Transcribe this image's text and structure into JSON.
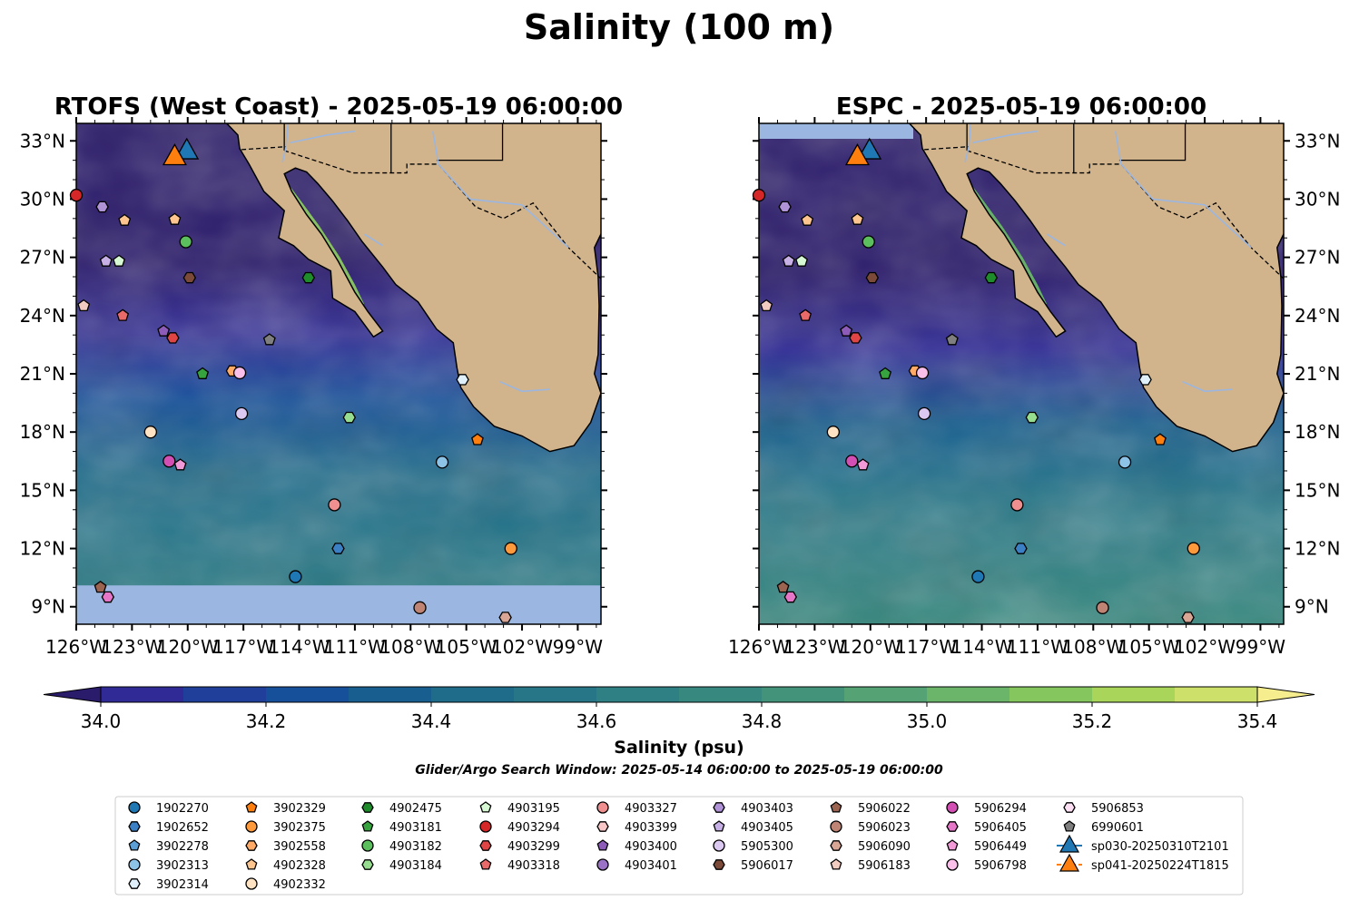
{
  "figure": {
    "title": "Salinity (100 m)",
    "panels": [
      {
        "id": "rtofs",
        "title": "RTOFS (West Coast) - 2025-05-19 06:00:00",
        "lat_labels_side": "left"
      },
      {
        "id": "espc",
        "title": "ESPC - 2025-05-19 06:00:00",
        "lat_labels_side": "right"
      }
    ],
    "lon_ticks": [
      "126°W",
      "123°W",
      "120°W",
      "117°W",
      "114°W",
      "111°W",
      "108°W",
      "105°W",
      "102°W",
      "99°W"
    ],
    "lat_ticks": [
      "33°N",
      "30°N",
      "27°N",
      "24°N",
      "21°N",
      "18°N",
      "15°N",
      "12°N",
      "9°N"
    ],
    "colorbar": {
      "label": "Salinity (psu)",
      "tick_labels": [
        "34.0",
        "34.2",
        "34.4",
        "34.6",
        "34.8",
        "35.0",
        "35.2",
        "35.4"
      ],
      "min": 34.0,
      "max": 35.4,
      "step": 0.1,
      "extend": "both",
      "colors": [
        "#2b1b6b",
        "#2f2a96",
        "#1f3f9a",
        "#17509a",
        "#185f8f",
        "#1e6b8a",
        "#267688",
        "#2e8084",
        "#37897f",
        "#43937a",
        "#55a274",
        "#6ab56a",
        "#86c65e",
        "#a8d55a",
        "#cde06a",
        "#f6ee8e"
      ]
    },
    "search_window": "Glider/Argo Search Window: 2025-05-14 06:00:00 to 2025-05-19 06:00:00",
    "land_color": "#d2b48c",
    "no_data_color": "#9bb6e0",
    "legend": {
      "columns": [
        [
          {
            "label": "1902270",
            "marker": "circle",
            "color": "#1f77b4"
          },
          {
            "label": "1902652",
            "marker": "hexagon",
            "color": "#3b80c4"
          },
          {
            "label": "3902278",
            "marker": "pentagon",
            "color": "#5b9fd6"
          },
          {
            "label": "3902313",
            "marker": "circle",
            "color": "#8ec3e8"
          },
          {
            "label": "3902314",
            "marker": "hexagon",
            "color": "#dff0fb"
          }
        ],
        [
          {
            "label": "3902329",
            "marker": "pentagon",
            "color": "#ff7f0e"
          },
          {
            "label": "3902375",
            "marker": "circle",
            "color": "#ff9a3c"
          },
          {
            "label": "3902558",
            "marker": "hexagon",
            "color": "#ffaa66"
          },
          {
            "label": "4902328",
            "marker": "pentagon",
            "color": "#ffc58f"
          },
          {
            "label": "4902332",
            "marker": "circle",
            "color": "#ffe3c2"
          }
        ],
        [
          {
            "label": "4902475",
            "marker": "hexagon",
            "color": "#1e8c2a"
          },
          {
            "label": "4903181",
            "marker": "pentagon",
            "color": "#36a33f"
          },
          {
            "label": "4903182",
            "marker": "circle",
            "color": "#5cbf5e"
          },
          {
            "label": "4903184",
            "marker": "hexagon",
            "color": "#97dd8f"
          }
        ],
        [
          {
            "label": "4903195",
            "marker": "pentagon",
            "color": "#d6f8d2"
          },
          {
            "label": "4903294",
            "marker": "circle",
            "color": "#d62728"
          },
          {
            "label": "4903299",
            "marker": "hexagon",
            "color": "#e04545"
          },
          {
            "label": "4903318",
            "marker": "pentagon",
            "color": "#ea6a6a"
          }
        ],
        [
          {
            "label": "4903327",
            "marker": "circle",
            "color": "#f08f8f"
          },
          {
            "label": "4903399",
            "marker": "hexagon",
            "color": "#f8c6c6"
          },
          {
            "label": "4903400",
            "marker": "pentagon",
            "color": "#8c5cb8"
          },
          {
            "label": "4903401",
            "marker": "circle",
            "color": "#9a72c6"
          }
        ],
        [
          {
            "label": "4903403",
            "marker": "hexagon",
            "color": "#b092d6"
          },
          {
            "label": "4903405",
            "marker": "pentagon",
            "color": "#c7b0e6"
          },
          {
            "label": "5905300",
            "marker": "circle",
            "color": "#dcc9f2"
          },
          {
            "label": "5906017",
            "marker": "hexagon",
            "color": "#7b4a38"
          }
        ],
        [
          {
            "label": "5906022",
            "marker": "pentagon",
            "color": "#9a6450"
          },
          {
            "label": "5906023",
            "marker": "circle",
            "color": "#bf8474"
          },
          {
            "label": "5906090",
            "marker": "hexagon",
            "color": "#d9a696"
          },
          {
            "label": "5906183",
            "marker": "pentagon",
            "color": "#f2ccc0"
          }
        ],
        [
          {
            "label": "5906294",
            "marker": "circle",
            "color": "#d34fb4"
          },
          {
            "label": "5906405",
            "marker": "hexagon",
            "color": "#e676c8"
          },
          {
            "label": "5906449",
            "marker": "pentagon",
            "color": "#f29ad8"
          },
          {
            "label": "5906798",
            "marker": "circle",
            "color": "#fbc0ea"
          }
        ],
        [
          {
            "label": "5906853",
            "marker": "hexagon",
            "color": "#fde0f4"
          },
          {
            "label": "6990601",
            "marker": "pentagon",
            "color": "#7f7f7f"
          },
          {
            "label": "sp030-20250310T2101",
            "marker": "triangle",
            "color": "#1f77b4",
            "line": true
          },
          {
            "label": "sp041-20250224T1815",
            "marker": "triangle",
            "color": "#ff7f0e",
            "line": true
          }
        ]
      ]
    }
  },
  "map_data": {
    "extent": {
      "lon_min": -126,
      "lon_max": -97.75,
      "lat_min": 8.1,
      "lat_max": 33.9
    },
    "coastline": [
      [
        -97.75,
        28.2
      ],
      [
        -98.1,
        27.5
      ],
      [
        -97.9,
        26.0
      ],
      [
        -97.85,
        24.5
      ],
      [
        -97.9,
        22.0
      ],
      [
        -98.1,
        21.0
      ],
      [
        -97.75,
        20.0
      ],
      [
        -98.3,
        18.5
      ],
      [
        -99.2,
        17.3
      ],
      [
        -100.5,
        17.0
      ],
      [
        -102.0,
        17.8
      ],
      [
        -103.5,
        18.3
      ],
      [
        -104.6,
        19.3
      ],
      [
        -105.3,
        20.3
      ],
      [
        -105.5,
        21.3
      ],
      [
        -105.7,
        22.6
      ],
      [
        -106.6,
        23.3
      ],
      [
        -107.6,
        24.7
      ],
      [
        -108.8,
        25.6
      ],
      [
        -109.5,
        26.5
      ],
      [
        -110.6,
        27.8
      ],
      [
        -111.4,
        28.9
      ],
      [
        -112.2,
        29.9
      ],
      [
        -113.0,
        30.8
      ],
      [
        -113.6,
        31.4
      ],
      [
        -114.2,
        31.6
      ],
      [
        -114.8,
        31.3
      ],
      [
        -114.4,
        30.4
      ],
      [
        -113.6,
        29.2
      ],
      [
        -112.8,
        28.2
      ],
      [
        -111.9,
        26.8
      ],
      [
        -111.0,
        25.2
      ],
      [
        -110.3,
        24.2
      ],
      [
        -109.5,
        23.2
      ],
      [
        -110.0,
        22.9
      ],
      [
        -111.0,
        24.2
      ],
      [
        -112.2,
        24.9
      ],
      [
        -112.3,
        26.3
      ],
      [
        -113.5,
        26.9
      ],
      [
        -114.3,
        27.6
      ],
      [
        -115.1,
        28.0
      ],
      [
        -114.8,
        29.4
      ],
      [
        -115.9,
        30.4
      ],
      [
        -116.7,
        31.8
      ],
      [
        -117.2,
        32.6
      ],
      [
        -117.3,
        33.3
      ],
      [
        -117.9,
        33.9
      ]
    ],
    "no_data_band": {
      "panel": "rtofs",
      "lat_max": 10.1
    },
    "markers": [
      {
        "id": "4903294",
        "lon": -126.0,
        "lat": 30.2
      },
      {
        "id": "4903403",
        "lon": -124.6,
        "lat": 29.6
      },
      {
        "id": "4902328",
        "lon": -123.4,
        "lat": 28.9
      },
      {
        "id": "4902328",
        "lon": -120.7,
        "lat": 28.95
      },
      {
        "id": "4903182",
        "lon": -120.1,
        "lat": 27.8
      },
      {
        "id": "4903405",
        "lon": -124.4,
        "lat": 26.8
      },
      {
        "id": "4903195",
        "lon": -123.7,
        "lat": 26.8
      },
      {
        "id": "5906017",
        "lon": -119.9,
        "lat": 25.95
      },
      {
        "id": "4902475",
        "lon": -113.5,
        "lat": 25.95
      },
      {
        "id": "5906183",
        "lon": -125.6,
        "lat": 24.5
      },
      {
        "id": "4903318",
        "lon": -123.5,
        "lat": 24.0
      },
      {
        "id": "4903400",
        "lon": -121.3,
        "lat": 23.2
      },
      {
        "id": "4903299",
        "lon": -120.8,
        "lat": 22.85
      },
      {
        "id": "6990601",
        "lon": -115.6,
        "lat": 22.75
      },
      {
        "id": "4903181",
        "lon": -119.2,
        "lat": 21.0
      },
      {
        "id": "3902558",
        "lon": -117.6,
        "lat": 21.15
      },
      {
        "id": "5906798",
        "lon": -117.2,
        "lat": 21.05
      },
      {
        "id": "3902314",
        "lon": -105.2,
        "lat": 20.7
      },
      {
        "id": "5905300",
        "lon": -117.1,
        "lat": 18.95
      },
      {
        "id": "4903184",
        "lon": -111.3,
        "lat": 18.75
      },
      {
        "id": "4902332",
        "lon": -122.0,
        "lat": 18.0
      },
      {
        "id": "3902329",
        "lon": -104.4,
        "lat": 17.6
      },
      {
        "id": "5906294",
        "lon": -121.0,
        "lat": 16.5
      },
      {
        "id": "5906449",
        "lon": -120.4,
        "lat": 16.3
      },
      {
        "id": "3902313",
        "lon": -106.3,
        "lat": 16.45
      },
      {
        "id": "4903327",
        "lon": -112.1,
        "lat": 14.25
      },
      {
        "id": "1902652",
        "lon": -111.9,
        "lat": 12.0
      },
      {
        "id": "3902375",
        "lon": -102.6,
        "lat": 12.0
      },
      {
        "id": "1902270",
        "lon": -114.2,
        "lat": 10.55
      },
      {
        "id": "5906022",
        "lon": -124.7,
        "lat": 10.0
      },
      {
        "id": "5906405",
        "lon": -124.3,
        "lat": 9.5
      },
      {
        "id": "5906023",
        "lon": -107.5,
        "lat": 8.95
      },
      {
        "id": "5906090",
        "lon": -102.9,
        "lat": 8.45
      },
      {
        "id": "sp030-20250310T2101",
        "lon": -120.05,
        "lat": 32.5
      },
      {
        "id": "sp041-20250224T1815",
        "lon": -120.7,
        "lat": 32.2
      }
    ]
  }
}
